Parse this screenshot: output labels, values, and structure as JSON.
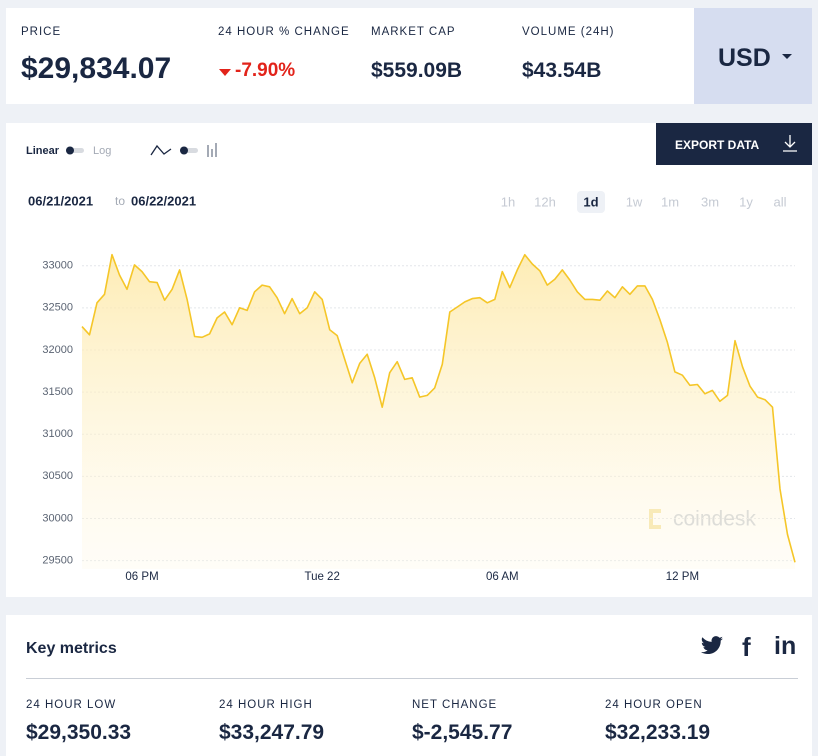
{
  "header": {
    "stats": [
      {
        "label": "PRICE",
        "value": "$29,834.07"
      },
      {
        "label": "24 HOUR % CHANGE",
        "value": "-7.90%"
      },
      {
        "label": "MARKET CAP",
        "value": "$559.09B"
      },
      {
        "label": "VOLUME (24H)",
        "value": "$43.54B"
      }
    ],
    "currency": "USD"
  },
  "controls": {
    "linear": "Linear",
    "log": "Log",
    "export": "EXPORT DATA",
    "date_from": "06/21/2021",
    "date_to_word": "to",
    "date_to": "06/22/2021",
    "ranges": [
      "1h",
      "12h",
      "1d",
      "1w",
      "1m",
      "3m",
      "1y",
      "all"
    ],
    "active_range": "1d"
  },
  "chart_data": {
    "type": "line",
    "color": "#f5c628",
    "watermark": "coindesk",
    "grid": true,
    "categories": [
      null,
      null,
      null,
      null,
      null,
      null,
      null,
      null,
      "06 PM",
      null,
      null,
      null,
      null,
      null,
      null,
      null,
      null,
      null,
      null,
      null,
      null,
      null,
      null,
      null,
      null,
      null,
      null,
      null,
      null,
      null,
      null,
      null,
      "Tue 22",
      null,
      null,
      null,
      null,
      null,
      null,
      null,
      null,
      null,
      null,
      null,
      null,
      null,
      null,
      null,
      null,
      null,
      null,
      null,
      null,
      null,
      null,
      null,
      "06 AM",
      null,
      null,
      null,
      null,
      null,
      null,
      null,
      null,
      null,
      null,
      null,
      null,
      null,
      null,
      null,
      null,
      null,
      null,
      null,
      null,
      null,
      null,
      null,
      "12 PM",
      null,
      null,
      null,
      null,
      null,
      null,
      null,
      null,
      null,
      null,
      null,
      null,
      null,
      null,
      null
    ],
    "values": [
      32277,
      32180,
      32560,
      32660,
      33130,
      32890,
      32720,
      33010,
      32930,
      32810,
      32800,
      32590,
      32720,
      32950,
      32600,
      32160,
      32150,
      32190,
      32380,
      32450,
      32300,
      32500,
      32470,
      32690,
      32770,
      32750,
      32620,
      32430,
      32610,
      32430,
      32500,
      32690,
      32600,
      32240,
      32170,
      31890,
      31610,
      31840,
      31950,
      31670,
      31320,
      31730,
      31860,
      31650,
      31670,
      31440,
      31460,
      31550,
      31830,
      32450,
      32510,
      32570,
      32610,
      32620,
      32560,
      32600,
      32930,
      32740,
      32950,
      33130,
      33020,
      32940,
      32770,
      32840,
      32950,
      32830,
      32690,
      32600,
      32600,
      32590,
      32700,
      32620,
      32750,
      32660,
      32760,
      32760,
      32600,
      32360,
      32090,
      31740,
      31700,
      31580,
      31590,
      31480,
      31520,
      31390,
      31460,
      32110,
      31800,
      31570,
      31440,
      31410,
      31320,
      30350,
      29810,
      29480
    ],
    "ylim": [
      29400,
      33400
    ],
    "yticks": [
      29500,
      30000,
      30500,
      31000,
      31500,
      32000,
      32500,
      33000
    ]
  },
  "metrics": {
    "title": "Key metrics",
    "social": [
      "f",
      "in"
    ],
    "items": [
      {
        "label": "24 HOUR LOW",
        "value": "$29,350.33"
      },
      {
        "label": "24 HOUR HIGH",
        "value": "$33,247.79"
      },
      {
        "label": "NET CHANGE",
        "value": "$-2,545.77"
      },
      {
        "label": "24 HOUR OPEN",
        "value": "$32,233.19"
      }
    ]
  }
}
